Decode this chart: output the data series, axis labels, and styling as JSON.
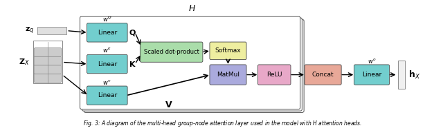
{
  "fig_width": 6.4,
  "fig_height": 1.86,
  "dpi": 100,
  "zx_label": "$\\mathbf{Z}_X$",
  "zq_label": "$\\mathbf{z}_q$",
  "hx_label": "$\\mathbf{h}_X$",
  "H_label": "$H$",
  "V_label": "$\\mathbf{V}$",
  "K_label": "$\\mathbf{K}$",
  "Q_label": "$\\mathbf{Q}$",
  "wv_label": "$w^v$",
  "wk_label": "$w^k$",
  "wq_label": "$w^Q$",
  "wo_label": "$w^o$",
  "linear_color": "#72cece",
  "sdp_color": "#aaddaa",
  "matmul_color": "#aaaadd",
  "softmax_color": "#eeeea0",
  "relu_color": "#e8a8c8",
  "concat_color": "#e8a898",
  "linear_o_color": "#72cece"
}
